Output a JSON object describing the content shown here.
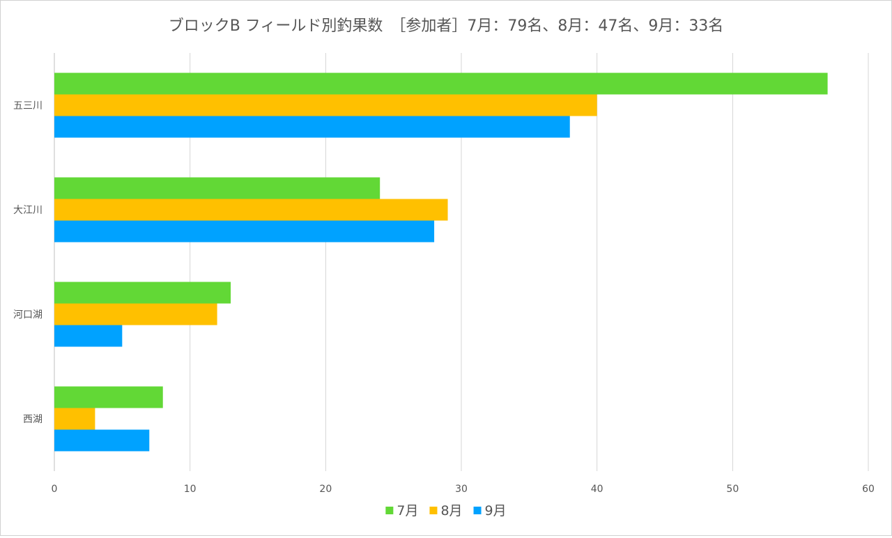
{
  "chart_data": {
    "type": "bar",
    "orientation": "horizontal",
    "title": "ブロックB フィールド別釣果数　［参加者］7月：79名、8月：47名、9月：33名",
    "categories": [
      "五三川",
      "大江川",
      "河口湖",
      "西湖"
    ],
    "series": [
      {
        "name": "7月",
        "color": "#62D836",
        "values": [
          57,
          24,
          13,
          8
        ]
      },
      {
        "name": "8月",
        "color": "#FFC000",
        "values": [
          40,
          29,
          12,
          3
        ]
      },
      {
        "name": "9月",
        "color": "#00A2FF",
        "values": [
          38,
          28,
          5,
          7
        ]
      }
    ],
    "xlim": [
      0,
      60
    ],
    "xticks": [
      0,
      10,
      20,
      30,
      40,
      50,
      60
    ],
    "grid": "vertical",
    "legend_position": "bottom",
    "colors": {
      "grid": "#d4d4d4",
      "axis": "#bfbfbf",
      "text": "#555555",
      "title": "#555555"
    }
  }
}
